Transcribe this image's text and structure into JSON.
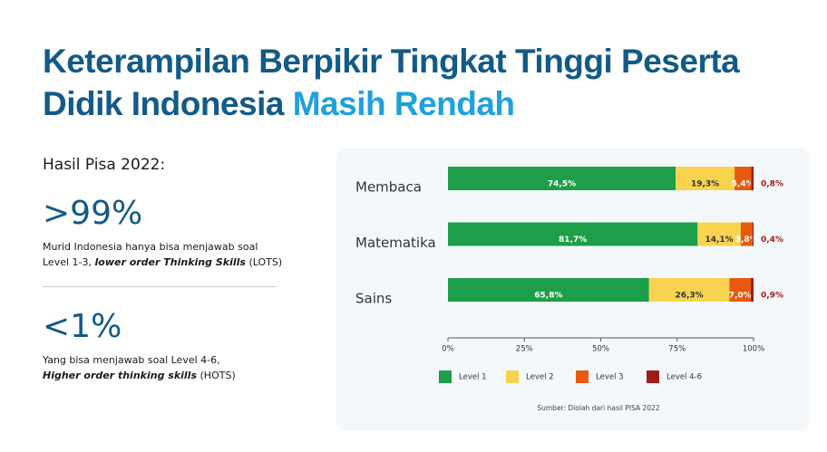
{
  "header": {
    "title_main": "Keterampilan Berpikir Tingkat Tinggi Peserta Didik Indonesia",
    "title_highlight": "Masih Rendah"
  },
  "summary": {
    "heading": "Hasil Pisa 2022:",
    "stats": [
      {
        "figure": ">99%",
        "line1": "Murid Indonesia hanya bisa menjawab soal",
        "line2": "Level 1-3,",
        "emphasis": "lower order Thinking Skills",
        "suffix": "(LOTS)"
      },
      {
        "figure": "<1%",
        "line1": "Yang bisa menjawab soal Level 4-6,",
        "emphasis": "Higher order thinking skills",
        "suffix": "(HOTS)"
      }
    ]
  },
  "chart_data": {
    "type": "stacked-bar-horizontal",
    "categories": [
      "Membaca",
      "Matematika",
      "Sains"
    ],
    "series": [
      {
        "name": "Level 1",
        "color": "#1d9e48",
        "values": [
          74.5,
          81.7,
          65.8
        ],
        "value_labels": [
          "74,5%",
          "81,7%",
          "65,8%"
        ]
      },
      {
        "name": "Level 2",
        "color": "#f8d34f",
        "values": [
          19.3,
          14.1,
          26.3
        ],
        "value_labels": [
          "19,3%",
          "14,1%",
          "26,3%"
        ]
      },
      {
        "name": "Level 3",
        "color": "#e85a0e",
        "values": [
          5.4,
          3.8,
          7.0
        ],
        "value_labels": [
          "5,4%",
          "3,8%",
          "7,0%"
        ]
      },
      {
        "name": "Level 4-6",
        "color": "#a01c1c",
        "values": [
          0.8,
          0.4,
          0.9
        ],
        "value_labels": [
          "0,8%",
          "0,4%",
          "0,9%"
        ]
      }
    ],
    "xlim": [
      0,
      100
    ],
    "xticks": [
      {
        "value": 0,
        "label": "0%"
      },
      {
        "value": 25,
        "label": "25%"
      },
      {
        "value": 50,
        "label": "50%"
      },
      {
        "value": 75,
        "label": "75%"
      },
      {
        "value": 100,
        "label": "100%"
      }
    ],
    "source": "Sumber: Diolah dari hasil PISA 2022"
  }
}
